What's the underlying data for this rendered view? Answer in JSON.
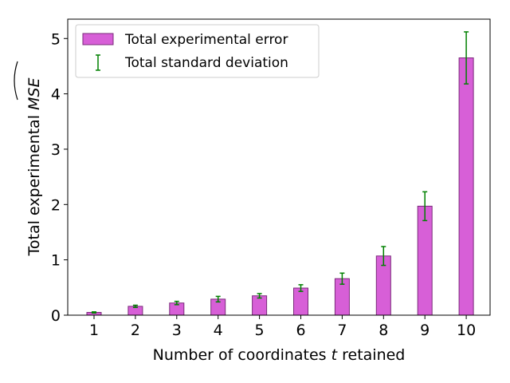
{
  "chart_data": {
    "type": "bar",
    "categories": [
      "1",
      "2",
      "3",
      "4",
      "5",
      "6",
      "7",
      "8",
      "9",
      "10"
    ],
    "series": [
      {
        "name": "Total experimental error",
        "values": [
          0.05,
          0.16,
          0.22,
          0.29,
          0.35,
          0.49,
          0.66,
          1.07,
          1.97,
          4.65
        ],
        "color": "#d75fd7",
        "edge_color": "#7a2a7a"
      }
    ],
    "error_bars": {
      "name": "Total standard deviation",
      "values": [
        0.01,
        0.02,
        0.03,
        0.05,
        0.04,
        0.06,
        0.1,
        0.17,
        0.26,
        0.47
      ],
      "color": "#008000"
    },
    "xlabel_prefix": "Number of coordinates ",
    "xlabel_var": "t",
    "xlabel_suffix": " retained",
    "ylabel_prefix": "Total experimental ",
    "ylabel_var": "MSE",
    "ylim": [
      0,
      5.35
    ],
    "yticks": [
      "0",
      "1",
      "2",
      "3",
      "4",
      "5"
    ],
    "legend_position": "upper-left",
    "grid": false
  }
}
